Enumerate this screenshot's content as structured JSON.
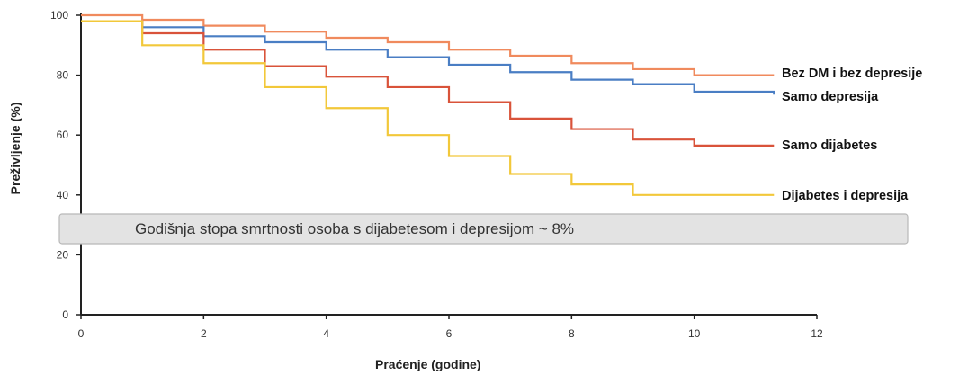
{
  "chart_data": {
    "type": "line",
    "step": true,
    "xlabel": "Praćenje (godine)",
    "ylabel": "Preživljenje (%)",
    "xlim": [
      0,
      12
    ],
    "ylim": [
      0,
      100
    ],
    "xticks": [
      0,
      2,
      4,
      6,
      8,
      10,
      12
    ],
    "yticks": [
      0,
      20,
      40,
      60,
      80,
      100
    ],
    "grid": false,
    "legend": "right, labels at line ends",
    "annotation": "Godišnja stopa smrtnosti osoba s dijabetesom i depresijom ~ 8%",
    "series": [
      {
        "name": "Bez DM i bez depresije",
        "color": "#F08A5D",
        "x": [
          0,
          1,
          2,
          3,
          4,
          5,
          6,
          7,
          8,
          9,
          10,
          11.3
        ],
        "y": [
          100,
          98.5,
          96.5,
          94.5,
          92.5,
          91,
          88.5,
          86.5,
          84,
          82,
          80,
          80
        ]
      },
      {
        "name": "Samo depresija",
        "color": "#4A7EC4",
        "x": [
          0,
          1,
          2,
          3,
          4,
          5,
          6,
          7,
          8,
          9,
          10,
          11.3
        ],
        "y": [
          98,
          96,
          93,
          91,
          88.5,
          86,
          83.5,
          81,
          78.5,
          77,
          74.5,
          73.5
        ]
      },
      {
        "name": "Samo dijabetes",
        "color": "#D9533A",
        "x": [
          0,
          1,
          2,
          3,
          4,
          5,
          6,
          7,
          8,
          9,
          10,
          11.3
        ],
        "y": [
          98,
          94,
          88.5,
          83,
          79.5,
          76,
          71,
          65.5,
          62,
          58.5,
          56.5,
          56.5
        ]
      },
      {
        "name": "Dijabetes i depresija",
        "color": "#F2C83A",
        "x": [
          0,
          1,
          2,
          3,
          4,
          5,
          6,
          7,
          8,
          9,
          10,
          11.3
        ],
        "y": [
          98,
          90,
          84,
          76,
          69,
          60,
          53,
          47,
          43.5,
          40,
          40,
          40
        ]
      }
    ]
  }
}
